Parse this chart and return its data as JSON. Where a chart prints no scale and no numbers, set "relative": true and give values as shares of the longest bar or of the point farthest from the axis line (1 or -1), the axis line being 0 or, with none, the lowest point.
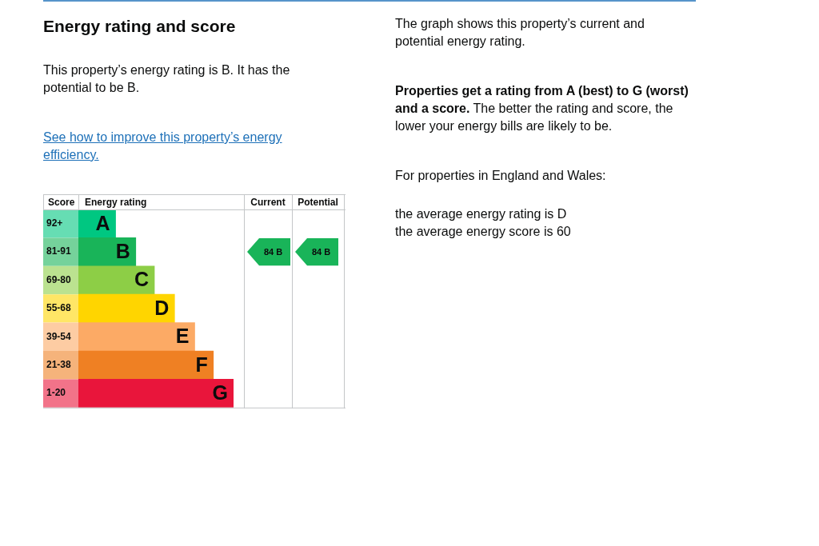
{
  "chart_data": {
    "type": "bar",
    "orientation": "horizontal",
    "relative": true,
    "title": "Energy rating and score",
    "subtitle": "This property’s energy rating is B. It has the potential to be B.",
    "xlabel": "Energy rating",
    "ylabel": "Score",
    "categories": [
      "92+",
      "81-91",
      "69-80",
      "55-68",
      "39-54",
      "21-38",
      "1-20"
    ],
    "values": [
      0.24,
      0.37,
      0.49,
      0.62,
      0.75,
      0.87,
      1
    ],
    "colors": [
      "#00c781",
      "#19b459",
      "#8dce46",
      "#ffd500",
      "#fcaa65",
      "#ef8023",
      "#e9153b"
    ],
    "annotations": [
      "See how to improve this property’s energy efficiency.",
      "The graph shows this property’s current and potential energy rating.",
      "Properties get a rating from A (best) to G (worst) and a score. The better the rating and score, the lower your energy bills are likely to be.",
      "For properties in England and Wales:",
      "the average energy rating is D",
      "the average energy score is 60",
      "Current",
      "Potential",
      "84 B",
      "84 B",
      {
        "text": "A",
        "x": 0.24,
        "y": "92+"
      },
      {
        "text": "B",
        "x": 0.37,
        "y": "81-91"
      },
      {
        "text": "C",
        "x": 0.49,
        "y": "69-80"
      },
      {
        "text": "D",
        "x": 0.62,
        "y": "55-68"
      },
      {
        "text": "E",
        "x": 0.75,
        "y": "39-54"
      },
      {
        "text": "F",
        "x": 0.87,
        "y": "21-38"
      },
      {
        "text": "G",
        "x": 1,
        "y": "1-20"
      }
    ]
  }
}
